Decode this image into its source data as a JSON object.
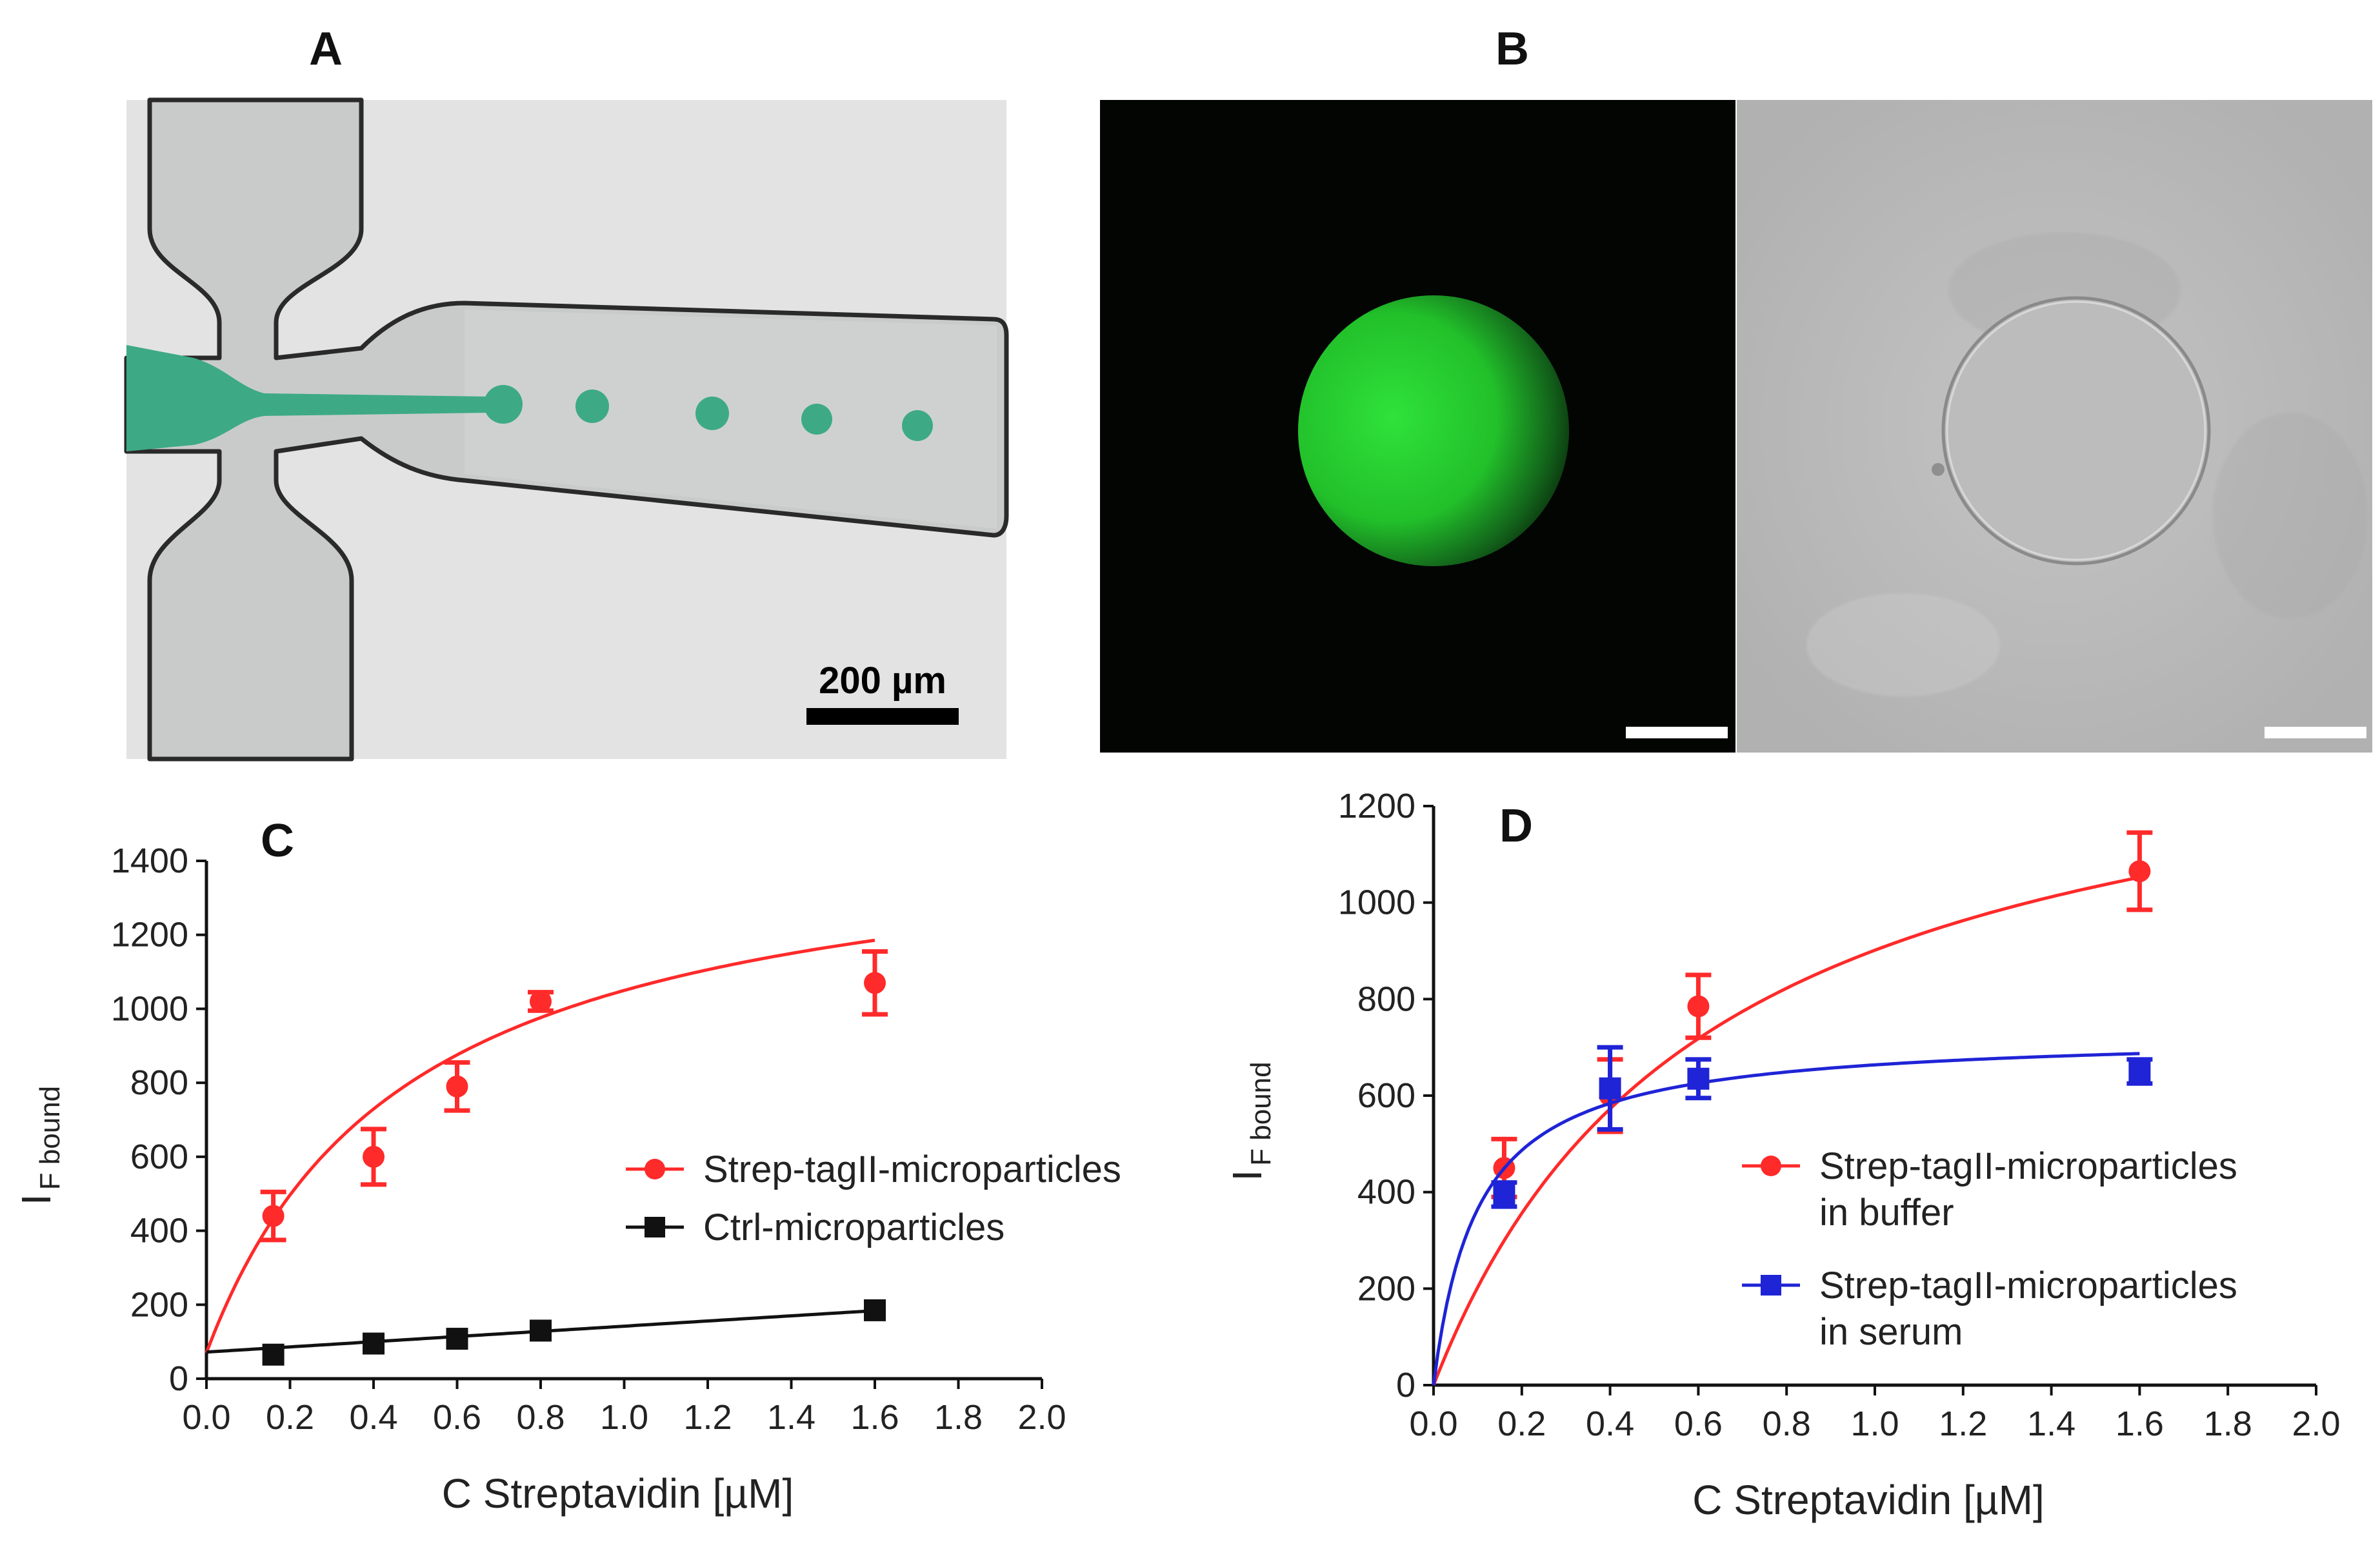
{
  "panels": {
    "A": {
      "letter": "A",
      "scale_bar_label": "200 µm"
    },
    "B": {
      "letter": "B"
    },
    "C": {
      "letter": "C"
    },
    "D": {
      "letter": "D"
    }
  },
  "colors": {
    "channel_fill": "#c9cbcb",
    "droplet_green": "#3daa85",
    "fluor_green": "#24d02c",
    "red_series": "#ff2a2a",
    "black_series": "#111111",
    "blue_series": "#1f24d6"
  },
  "chart_data": [
    {
      "panel": "C",
      "type": "scatter",
      "xlabel": "C Streptavidin [µM]",
      "ylabel_main": "I",
      "ylabel_sub": "F bound",
      "xlim": [
        0.0,
        2.0
      ],
      "ylim": [
        0,
        1400
      ],
      "xticks": [
        "0.0",
        "0.2",
        "0.4",
        "0.6",
        "0.8",
        "1.0",
        "1.2",
        "1.4",
        "1.6",
        "1.8",
        "2.0"
      ],
      "yticks": [
        "0",
        "200",
        "400",
        "600",
        "800",
        "1000",
        "1200",
        "1400"
      ],
      "legend_position": "center-right",
      "series": [
        {
          "name": "Strep-tagII-microparticles",
          "marker": "circle",
          "color_key": "red_series",
          "points": [
            {
              "x": 0.16,
              "y": 440,
              "err": 65
            },
            {
              "x": 0.4,
              "y": 600,
              "err": 75
            },
            {
              "x": 0.6,
              "y": 790,
              "err": 65
            },
            {
              "x": 0.8,
              "y": 1020,
              "err": 25
            },
            {
              "x": 1.6,
              "y": 1070,
              "err": 85
            }
          ],
          "fit": {
            "model": "saturation_offset",
            "bmax": 1450,
            "kd": 0.48,
            "offset": 70
          }
        },
        {
          "name": "Ctrl-microparticles",
          "marker": "square",
          "color_key": "black_series",
          "points": [
            {
              "x": 0.16,
              "y": 65,
              "err": 0
            },
            {
              "x": 0.4,
              "y": 95,
              "err": 0
            },
            {
              "x": 0.6,
              "y": 108,
              "err": 0
            },
            {
              "x": 0.8,
              "y": 130,
              "err": 0
            },
            {
              "x": 1.6,
              "y": 185,
              "err": 0
            }
          ],
          "fit": {
            "model": "linear",
            "slope": 70,
            "intercept": 72
          }
        }
      ]
    },
    {
      "panel": "D",
      "type": "scatter",
      "xlabel": "C Streptavidin [µM]",
      "ylabel_main": "I",
      "ylabel_sub": "F bound",
      "xlim": [
        0.0,
        2.0
      ],
      "ylim": [
        0,
        1200
      ],
      "xticks": [
        "0.0",
        "0.2",
        "0.4",
        "0.6",
        "0.8",
        "1.0",
        "1.2",
        "1.4",
        "1.6",
        "1.8",
        "2.0"
      ],
      "yticks": [
        "0",
        "200",
        "400",
        "600",
        "800",
        "1000",
        "1200"
      ],
      "legend_position": "bottom-right",
      "series": [
        {
          "name": "Strep-tagII-microparticles in buffer",
          "name_lines": [
            "Strep-tagII-microparticles",
            "in buffer"
          ],
          "marker": "circle",
          "color_key": "red_series",
          "points": [
            {
              "x": 0.16,
              "y": 450,
              "err": 60
            },
            {
              "x": 0.4,
              "y": 600,
              "err": 75
            },
            {
              "x": 0.6,
              "y": 785,
              "err": 65
            },
            {
              "x": 1.6,
              "y": 1065,
              "err": 80
            }
          ],
          "fit": {
            "model": "saturation",
            "bmax": 1460,
            "kd": 0.62
          }
        },
        {
          "name": "Strep-tagII-microparticles in serum",
          "name_lines": [
            "Strep-tagII-microparticles",
            "in serum"
          ],
          "marker": "square",
          "color_key": "blue_series",
          "points": [
            {
              "x": 0.16,
              "y": 395,
              "err": 25
            },
            {
              "x": 0.4,
              "y": 615,
              "err": 85
            },
            {
              "x": 0.6,
              "y": 635,
              "err": 40
            },
            {
              "x": 1.6,
              "y": 650,
              "err": 25
            }
          ],
          "fit": {
            "model": "saturation",
            "bmax": 730,
            "kd": 0.1
          }
        }
      ]
    }
  ]
}
